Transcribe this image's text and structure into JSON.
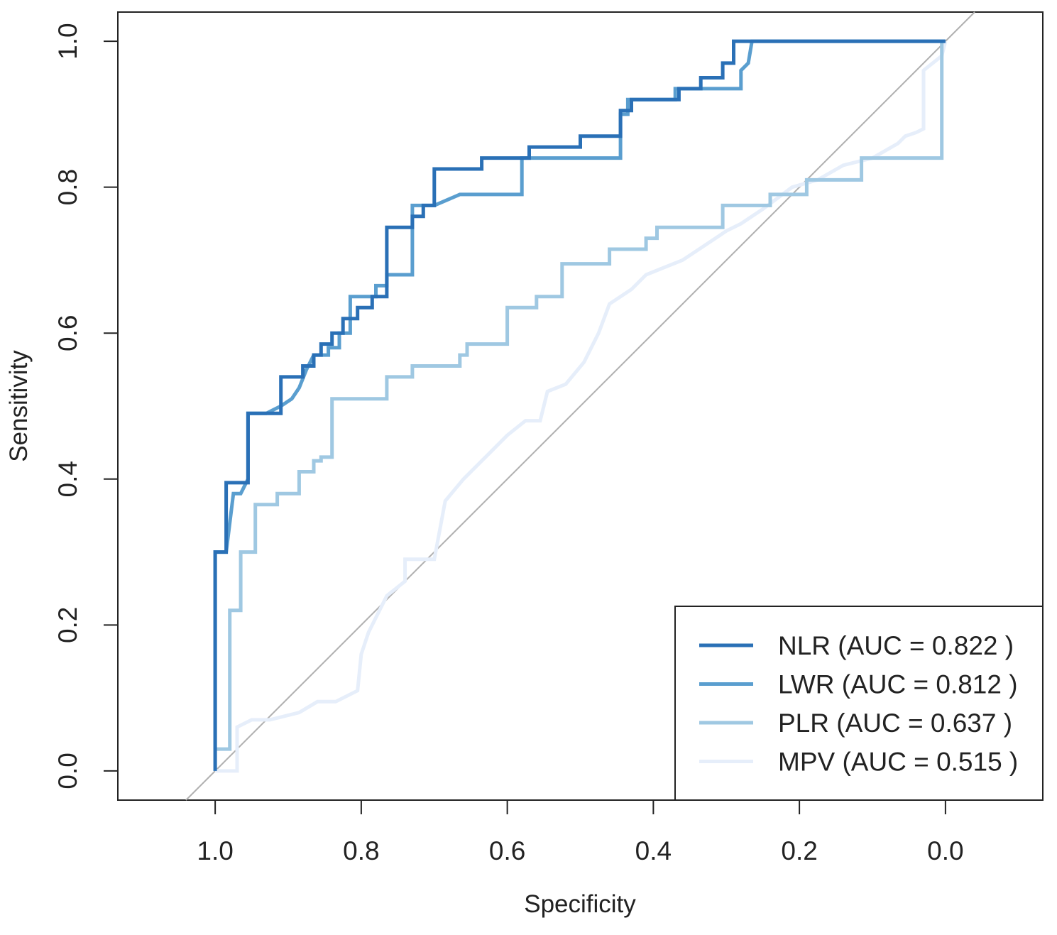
{
  "chart_data": {
    "type": "line",
    "subtype": "roc",
    "title": "",
    "xlabel": "Specificity",
    "ylabel": "Sensitivity",
    "xlim": [
      1.1333,
      -0.1333
    ],
    "ylim": [
      -0.04,
      1.04
    ],
    "x_reversed": true,
    "x_ticks": [
      1.0,
      0.8,
      0.6,
      0.4,
      0.2,
      0.0
    ],
    "x_tick_labels": [
      "1.0",
      "0.8",
      "0.6",
      "0.4",
      "0.2",
      "0.0"
    ],
    "y_ticks": [
      0.0,
      0.2,
      0.4,
      0.6,
      0.8,
      1.0
    ],
    "y_tick_labels": [
      "0.0",
      "0.2",
      "0.4",
      "0.6",
      "0.8",
      "1.0"
    ],
    "reference_line": {
      "from": [
        1.04,
        -0.04
      ],
      "to": [
        -0.04,
        1.04
      ],
      "color": "#b0b0b0"
    },
    "legend_position": "bottom-right",
    "series": [
      {
        "name": "NLR",
        "label": "NLR (AUC = 0.822 )",
        "auc": 0.822,
        "color": "#2a70b6",
        "x": [
          1.0,
          1.0,
          0.985,
          0.985,
          0.955,
          0.955,
          0.91,
          0.91,
          0.88,
          0.88,
          0.865,
          0.865,
          0.855,
          0.855,
          0.84,
          0.84,
          0.825,
          0.825,
          0.805,
          0.805,
          0.785,
          0.785,
          0.765,
          0.765,
          0.73,
          0.73,
          0.715,
          0.715,
          0.7,
          0.7,
          0.635,
          0.635,
          0.57,
          0.57,
          0.5,
          0.5,
          0.445,
          0.445,
          0.43,
          0.43,
          0.365,
          0.365,
          0.335,
          0.335,
          0.305,
          0.305,
          0.29,
          0.29,
          0.0
        ],
        "y": [
          0.0,
          0.3,
          0.3,
          0.395,
          0.395,
          0.49,
          0.49,
          0.54,
          0.54,
          0.555,
          0.555,
          0.57,
          0.57,
          0.585,
          0.585,
          0.6,
          0.6,
          0.62,
          0.62,
          0.635,
          0.635,
          0.65,
          0.65,
          0.745,
          0.745,
          0.76,
          0.76,
          0.775,
          0.775,
          0.825,
          0.825,
          0.84,
          0.84,
          0.855,
          0.855,
          0.87,
          0.87,
          0.905,
          0.905,
          0.92,
          0.92,
          0.935,
          0.935,
          0.95,
          0.95,
          0.97,
          0.97,
          1.0,
          1.0
        ]
      },
      {
        "name": "LWR",
        "label": "LWR (AUC = 0.812 )",
        "auc": 0.812,
        "color": "#5a9ecf",
        "x": [
          1.0,
          1.0,
          0.985,
          0.975,
          0.965,
          0.955,
          0.955,
          0.93,
          0.91,
          0.895,
          0.885,
          0.875,
          0.865,
          0.86,
          0.845,
          0.845,
          0.83,
          0.83,
          0.815,
          0.815,
          0.78,
          0.78,
          0.765,
          0.765,
          0.73,
          0.73,
          0.7,
          0.665,
          0.58,
          0.58,
          0.445,
          0.445,
          0.435,
          0.435,
          0.37,
          0.37,
          0.28,
          0.28,
          0.27,
          0.265,
          0.0,
          0.0
        ],
        "y": [
          0.03,
          0.3,
          0.3,
          0.38,
          0.38,
          0.4,
          0.49,
          0.49,
          0.5,
          0.51,
          0.525,
          0.55,
          0.57,
          0.57,
          0.57,
          0.58,
          0.58,
          0.6,
          0.6,
          0.65,
          0.65,
          0.665,
          0.665,
          0.68,
          0.68,
          0.775,
          0.775,
          0.79,
          0.79,
          0.84,
          0.84,
          0.9,
          0.9,
          0.92,
          0.92,
          0.935,
          0.935,
          0.96,
          0.97,
          1.0,
          1.0,
          1.0
        ]
      },
      {
        "name": "PLR",
        "label": "PLR (AUC = 0.637 )",
        "auc": 0.637,
        "color": "#9fc8e2",
        "x": [
          1.0,
          1.0,
          0.98,
          0.98,
          0.965,
          0.965,
          0.945,
          0.945,
          0.915,
          0.915,
          0.885,
          0.885,
          0.865,
          0.865,
          0.855,
          0.855,
          0.84,
          0.84,
          0.765,
          0.765,
          0.73,
          0.73,
          0.7,
          0.7,
          0.665,
          0.665,
          0.655,
          0.655,
          0.64,
          0.64,
          0.6,
          0.6,
          0.56,
          0.56,
          0.525,
          0.525,
          0.46,
          0.46,
          0.41,
          0.41,
          0.395,
          0.395,
          0.38,
          0.38,
          0.305,
          0.305,
          0.24,
          0.24,
          0.19,
          0.19,
          0.115,
          0.115,
          0.005,
          0.005
        ],
        "y": [
          0.0,
          0.03,
          0.03,
          0.22,
          0.22,
          0.3,
          0.3,
          0.365,
          0.365,
          0.38,
          0.38,
          0.41,
          0.41,
          0.425,
          0.425,
          0.43,
          0.43,
          0.51,
          0.51,
          0.54,
          0.54,
          0.555,
          0.555,
          0.555,
          0.555,
          0.57,
          0.57,
          0.585,
          0.585,
          0.585,
          0.585,
          0.635,
          0.635,
          0.65,
          0.65,
          0.695,
          0.695,
          0.715,
          0.715,
          0.73,
          0.73,
          0.745,
          0.745,
          0.745,
          0.745,
          0.775,
          0.775,
          0.79,
          0.79,
          0.81,
          0.81,
          0.84,
          0.84,
          1.0
        ]
      },
      {
        "name": "MPV",
        "label": "MPV (AUC = 0.515 )",
        "auc": 0.515,
        "color": "#e6eefa",
        "x": [
          1.0,
          0.97,
          0.97,
          0.95,
          0.925,
          0.885,
          0.86,
          0.835,
          0.805,
          0.8,
          0.79,
          0.765,
          0.74,
          0.74,
          0.7,
          0.685,
          0.66,
          0.62,
          0.6,
          0.575,
          0.555,
          0.545,
          0.52,
          0.495,
          0.475,
          0.46,
          0.43,
          0.41,
          0.385,
          0.36,
          0.33,
          0.3,
          0.28,
          0.25,
          0.21,
          0.175,
          0.14,
          0.1,
          0.065,
          0.055,
          0.04,
          0.03,
          0.03,
          0.005,
          0.0
        ],
        "y": [
          0.0,
          0.0,
          0.06,
          0.07,
          0.07,
          0.08,
          0.095,
          0.095,
          0.11,
          0.16,
          0.19,
          0.24,
          0.26,
          0.29,
          0.29,
          0.37,
          0.4,
          0.44,
          0.46,
          0.48,
          0.48,
          0.52,
          0.53,
          0.56,
          0.6,
          0.64,
          0.66,
          0.68,
          0.69,
          0.7,
          0.72,
          0.74,
          0.75,
          0.77,
          0.8,
          0.81,
          0.83,
          0.84,
          0.86,
          0.87,
          0.875,
          0.88,
          0.96,
          0.98,
          1.0
        ]
      }
    ]
  }
}
